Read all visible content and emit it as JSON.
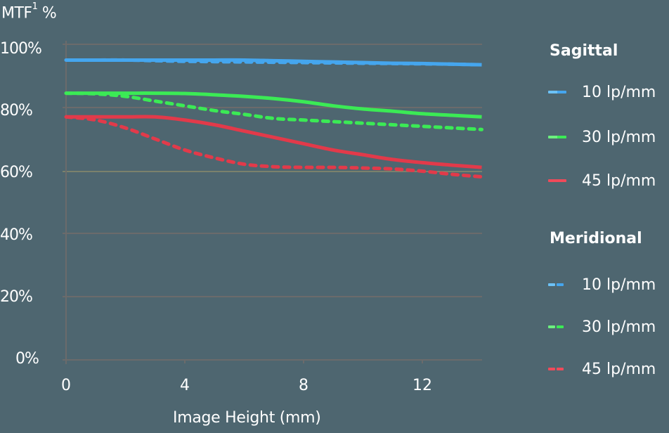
{
  "chart_data": {
    "type": "line",
    "title": "",
    "ylabel": "MTF¹ %",
    "xlabel": "Image Height  (mm)",
    "ylim": [
      0,
      100
    ],
    "xlim": [
      0,
      14
    ],
    "yticks": [
      "0%",
      "20%",
      "40%",
      "60%",
      "80%",
      "100%"
    ],
    "xticks": [
      "0",
      "4",
      "8",
      "12"
    ],
    "grid": true,
    "legend_position": "right",
    "x": [
      0,
      1,
      2,
      3,
      4,
      5,
      6,
      7,
      8,
      9,
      10,
      11,
      12,
      13,
      14
    ],
    "series": [
      {
        "name": "Sagittal 10 lp/mm",
        "group": "Sagittal",
        "style": "solid",
        "color": "#45a6ee",
        "values": [
          95,
          95,
          95,
          95,
          95,
          95,
          95,
          94.8,
          94.6,
          94.4,
          94.2,
          94,
          93.9,
          93.7,
          93.5
        ]
      },
      {
        "name": "Sagittal 30 lp/mm",
        "group": "Sagittal",
        "style": "solid",
        "color": "#3bea55",
        "values": [
          84.5,
          84.5,
          84.5,
          84.5,
          84.4,
          84,
          83.5,
          82.8,
          81.8,
          80.5,
          79.5,
          78.8,
          78,
          77.5,
          77
        ]
      },
      {
        "name": "Sagittal 45 lp/mm",
        "group": "Sagittal",
        "style": "solid",
        "color": "#e23a4a",
        "values": [
          77,
          77,
          77,
          77,
          76,
          74.5,
          72.5,
          70.5,
          68.5,
          66.5,
          65,
          63.5,
          62.5,
          61.7,
          61
        ]
      },
      {
        "name": "Meridional 10 lp/mm",
        "group": "Meridional",
        "style": "dashed",
        "color": "#45a6ee",
        "values": [
          95,
          95,
          95,
          94.8,
          94.6,
          94.5,
          94.4,
          94.3,
          94.2,
          94.1,
          94,
          93.9,
          93.8,
          93.7,
          93.5
        ]
      },
      {
        "name": "Meridional 30 lp/mm",
        "group": "Meridional",
        "style": "dashed",
        "color": "#3bea55",
        "values": [
          84.5,
          84.3,
          83.5,
          82,
          80.5,
          79,
          77.8,
          76.5,
          76,
          75.5,
          75,
          74.5,
          74,
          73.5,
          73
        ]
      },
      {
        "name": "Meridional 45 lp/mm",
        "group": "Meridional",
        "style": "dashed",
        "color": "#e23a4a",
        "values": [
          77,
          76,
          73.5,
          70,
          66.5,
          64,
          62,
          61.2,
          61,
          61,
          60.8,
          60.5,
          59.8,
          58.8,
          58
        ]
      }
    ]
  },
  "axis": {
    "y_title": "MTF",
    "y_title_sup": "1",
    "y_title_suffix": " %",
    "y_ticks": [
      {
        "label": "100%",
        "value": 100
      },
      {
        "label": "80%",
        "value": 80
      },
      {
        "label": "60%",
        "value": 60
      },
      {
        "label": "40%",
        "value": 40
      },
      {
        "label": "20%",
        "value": 20
      },
      {
        "label": "0%",
        "value": 0
      }
    ],
    "x_ticks": [
      "0",
      "4",
      "8",
      "12"
    ],
    "x_title": "Image Height  (mm)"
  },
  "legend": {
    "sagittal_title": "Sagittal",
    "meridional_title": "Meridional",
    "sagittal_items": [
      {
        "label": "10 lp/mm",
        "color": "#45a6ee",
        "color_light": "#6cc2f6"
      },
      {
        "label": "30 lp/mm",
        "color": "#3bea55",
        "color_light": "#6cef7e"
      },
      {
        "label": "45 lp/mm",
        "color": "#e23a4a",
        "color_light": "#f04a5a"
      }
    ],
    "meridional_items": [
      {
        "label": "10 lp/mm",
        "color": "#45a6ee",
        "color_light": "#6cc2f6"
      },
      {
        "label": "30 lp/mm",
        "color": "#3bea55",
        "color_light": "#6cef7e"
      },
      {
        "label": "45 lp/mm",
        "color": "#e23a4a",
        "color_light": "#f04a5a"
      }
    ]
  },
  "colors": {
    "background": "#4e6670",
    "axis": "#6b6b6b",
    "grid": "#6b6b6b",
    "grid_60": "#8a8a6a",
    "text": "#ffffff"
  }
}
